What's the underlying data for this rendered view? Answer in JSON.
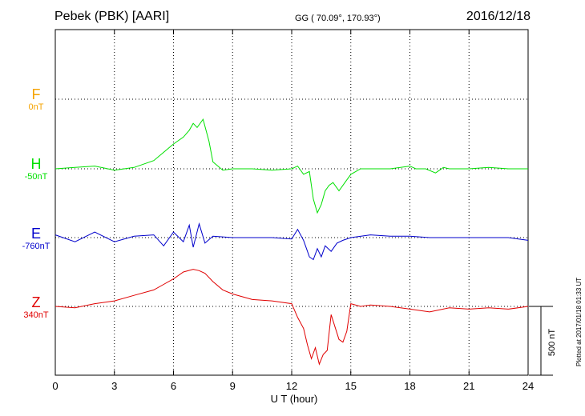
{
  "header": {
    "station": "Pebek (PBK)  [AARI]",
    "coords": "GG ( 70.09°, 170.93°)",
    "date": "2016/12/18"
  },
  "plotted_note": "Plotted at 2017/01/18 01:33 UT",
  "colors": {
    "F": "#f5a300",
    "H": "#00e000",
    "E": "#0000cc",
    "Z": "#e00000",
    "axis": "#000000"
  },
  "chart_data": {
    "type": "line",
    "title": "Pebek (PBK)  [AARI]",
    "xlabel": "U T (hour)",
    "ylabel": "",
    "xlim": [
      0,
      24
    ],
    "x_ticks": [
      0,
      3,
      6,
      9,
      12,
      15,
      18,
      21,
      24
    ],
    "x_tick_labels": [
      "0",
      "3",
      "6",
      "9",
      "12",
      "15",
      "18",
      "21",
      "24"
    ],
    "grid": true,
    "scale_bar": {
      "label": "500 nT",
      "value_nT": 500
    },
    "series": [
      {
        "name": "F",
        "offset_label": "0nT",
        "color": "#f5a300",
        "x": [],
        "values": []
      },
      {
        "name": "H",
        "offset_label": "-50nT",
        "color": "#00e000",
        "x": [
          0,
          1,
          2,
          3,
          4,
          5,
          5.5,
          6,
          6.5,
          6.8,
          7,
          7.2,
          7.5,
          7.8,
          8,
          8.5,
          9,
          10,
          11,
          12,
          12.3,
          12.6,
          12.9,
          13.1,
          13.3,
          13.5,
          13.7,
          13.9,
          14.1,
          14.4,
          14.7,
          15,
          15.5,
          16,
          17,
          18,
          18.3,
          18.8,
          19.3,
          19.7,
          20,
          21,
          22,
          23,
          24
        ],
        "values": [
          0,
          10,
          20,
          -10,
          10,
          60,
          120,
          180,
          230,
          280,
          330,
          300,
          360,
          200,
          50,
          -10,
          0,
          0,
          -10,
          0,
          20,
          -40,
          -20,
          -220,
          -320,
          -260,
          -160,
          -120,
          -100,
          -160,
          -100,
          -40,
          0,
          0,
          0,
          20,
          0,
          0,
          -30,
          10,
          0,
          0,
          10,
          0,
          0
        ]
      },
      {
        "name": "E",
        "offset_label": "-760nT",
        "color": "#0000cc",
        "x": [
          0,
          1,
          2,
          3,
          4,
          5,
          5.5,
          6,
          6.5,
          6.8,
          7,
          7.3,
          7.6,
          8,
          9,
          10,
          11,
          12,
          12.3,
          12.6,
          12.9,
          13.1,
          13.3,
          13.5,
          13.7,
          14,
          14.3,
          14.6,
          15,
          16,
          17,
          18,
          19,
          20,
          21,
          22,
          23,
          24
        ],
        "values": [
          20,
          -30,
          40,
          -30,
          10,
          20,
          -60,
          40,
          -30,
          90,
          -70,
          100,
          -40,
          10,
          0,
          0,
          0,
          -10,
          60,
          -20,
          -140,
          -160,
          -80,
          -140,
          -60,
          -100,
          -40,
          -20,
          0,
          20,
          10,
          10,
          0,
          0,
          0,
          0,
          0,
          -20
        ]
      },
      {
        "name": "Z",
        "offset_label": "340nT",
        "color": "#e00000",
        "x": [
          0,
          1,
          2,
          3,
          4,
          5,
          5.5,
          6,
          6.5,
          7,
          7.3,
          7.6,
          8,
          8.5,
          9,
          10,
          11,
          12,
          12.3,
          12.6,
          12.8,
          13,
          13.2,
          13.4,
          13.6,
          13.8,
          14,
          14.2,
          14.4,
          14.6,
          14.8,
          15,
          15.5,
          16,
          17,
          18,
          19,
          20,
          21,
          22,
          23,
          24
        ],
        "values": [
          0,
          -10,
          20,
          40,
          80,
          120,
          160,
          200,
          250,
          270,
          260,
          240,
          180,
          120,
          90,
          50,
          40,
          20,
          -80,
          -160,
          -280,
          -380,
          -300,
          -420,
          -350,
          -320,
          -60,
          -150,
          -240,
          -260,
          -180,
          20,
          0,
          10,
          0,
          -20,
          -40,
          -10,
          -20,
          -10,
          -20,
          0
        ]
      }
    ]
  }
}
